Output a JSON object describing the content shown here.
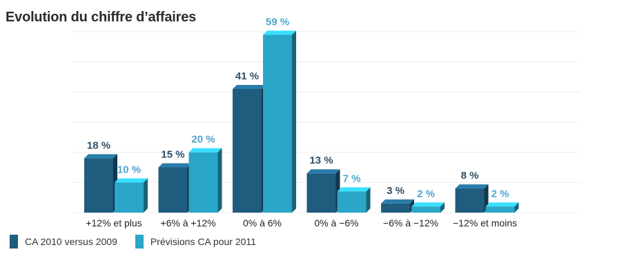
{
  "chart_data": {
    "type": "bar",
    "title": "Evolution du chiffre d’affaires",
    "categories": [
      "+12% et plus",
      "+6% à +12%",
      "0% à 6%",
      "0% à −6%",
      "−6% à −12%",
      "−12% et moins"
    ],
    "series": [
      {
        "name": "CA 2010 versus 2009",
        "values": [
          18,
          15,
          41,
          13,
          3,
          8
        ],
        "labels": [
          "18 %",
          "15 %",
          "41 %",
          "13 %",
          "3 %",
          "8 %"
        ],
        "color": "#1f5c7e",
        "label_color": "#2f4f66"
      },
      {
        "name": "Prévisions CA pour 2011",
        "values": [
          10,
          20,
          59,
          7,
          2,
          2
        ],
        "labels": [
          "10 %",
          "20 %",
          "59 %",
          "7 %",
          "2 %",
          "2 %"
        ],
        "color": "#2aa6c8",
        "label_color": "#4fa3cf"
      }
    ],
    "ylim": [
      0,
      60
    ],
    "grid": true,
    "legend_position": "bottom-left"
  }
}
